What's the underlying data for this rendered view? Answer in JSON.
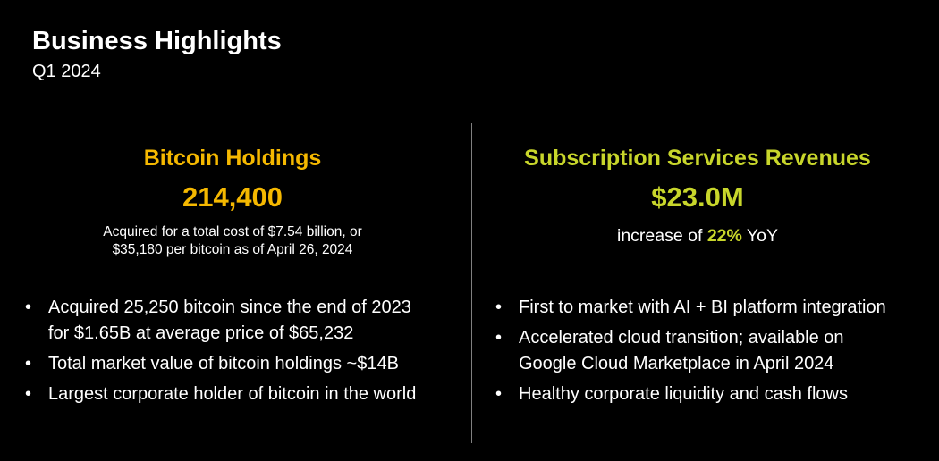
{
  "header": {
    "title": "Business Highlights",
    "subtitle": "Q1 2024"
  },
  "colors": {
    "background": "#000000",
    "text": "#ffffff",
    "bitcoin_accent": "#f5b800",
    "subscription_accent": "#c8d62b",
    "divider": "#808080"
  },
  "bitcoin": {
    "heading": "Bitcoin Holdings",
    "metric": "214,400",
    "caption_line1": "Acquired for a total cost of $7.54 billion, or",
    "caption_line2": "$35,180 per bitcoin as of April 26, 2024",
    "bullets": [
      {
        "line1": "Acquired 25,250 bitcoin since the end of 2023",
        "line2": "for $1.65B at average price of $65,232"
      },
      {
        "line1": "Total market value of bitcoin holdings ~$14B",
        "line2": ""
      },
      {
        "line1": "Largest corporate holder of bitcoin in the world",
        "line2": ""
      }
    ]
  },
  "subscription": {
    "heading": "Subscription Services Revenues",
    "metric": "$23.0M",
    "caption_prefix": "increase of ",
    "caption_highlight": "22%",
    "caption_suffix": " YoY",
    "bullets": [
      {
        "line1": "First to market with AI + BI platform integration",
        "line2": ""
      },
      {
        "line1": "Accelerated cloud transition; available on",
        "line2": "Google Cloud Marketplace in April 2024"
      },
      {
        "line1": "Healthy corporate liquidity and cash flows",
        "line2": ""
      }
    ]
  },
  "bullet_glyph": "•"
}
